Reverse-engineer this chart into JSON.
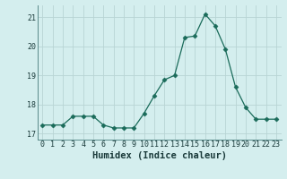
{
  "xlabel": "Humidex (Indice chaleur)",
  "ylabel": "",
  "x": [
    0,
    1,
    2,
    3,
    4,
    5,
    6,
    7,
    8,
    9,
    10,
    11,
    12,
    13,
    14,
    15,
    16,
    17,
    18,
    19,
    20,
    21,
    22,
    23
  ],
  "y": [
    17.3,
    17.3,
    17.3,
    17.6,
    17.6,
    17.6,
    17.3,
    17.2,
    17.2,
    17.2,
    17.7,
    18.3,
    18.85,
    19.0,
    20.3,
    20.35,
    21.1,
    20.7,
    19.9,
    18.6,
    17.9,
    17.5,
    17.5,
    17.5
  ],
  "line_color": "#1a6b5a",
  "marker": "D",
  "marker_size": 2.5,
  "bg_color": "#d4eeee",
  "grid_color": "#b8d4d4",
  "tick_label_color": "#1a3a3a",
  "axis_label_color": "#1a3a3a",
  "ylim": [
    16.8,
    21.4
  ],
  "yticks": [
    17,
    18,
    19,
    20,
    21
  ],
  "xticks": [
    0,
    1,
    2,
    3,
    4,
    5,
    6,
    7,
    8,
    9,
    10,
    11,
    12,
    13,
    14,
    15,
    16,
    17,
    18,
    19,
    20,
    21,
    22,
    23
  ],
  "font_size_tick": 6,
  "font_size_label": 7.5
}
